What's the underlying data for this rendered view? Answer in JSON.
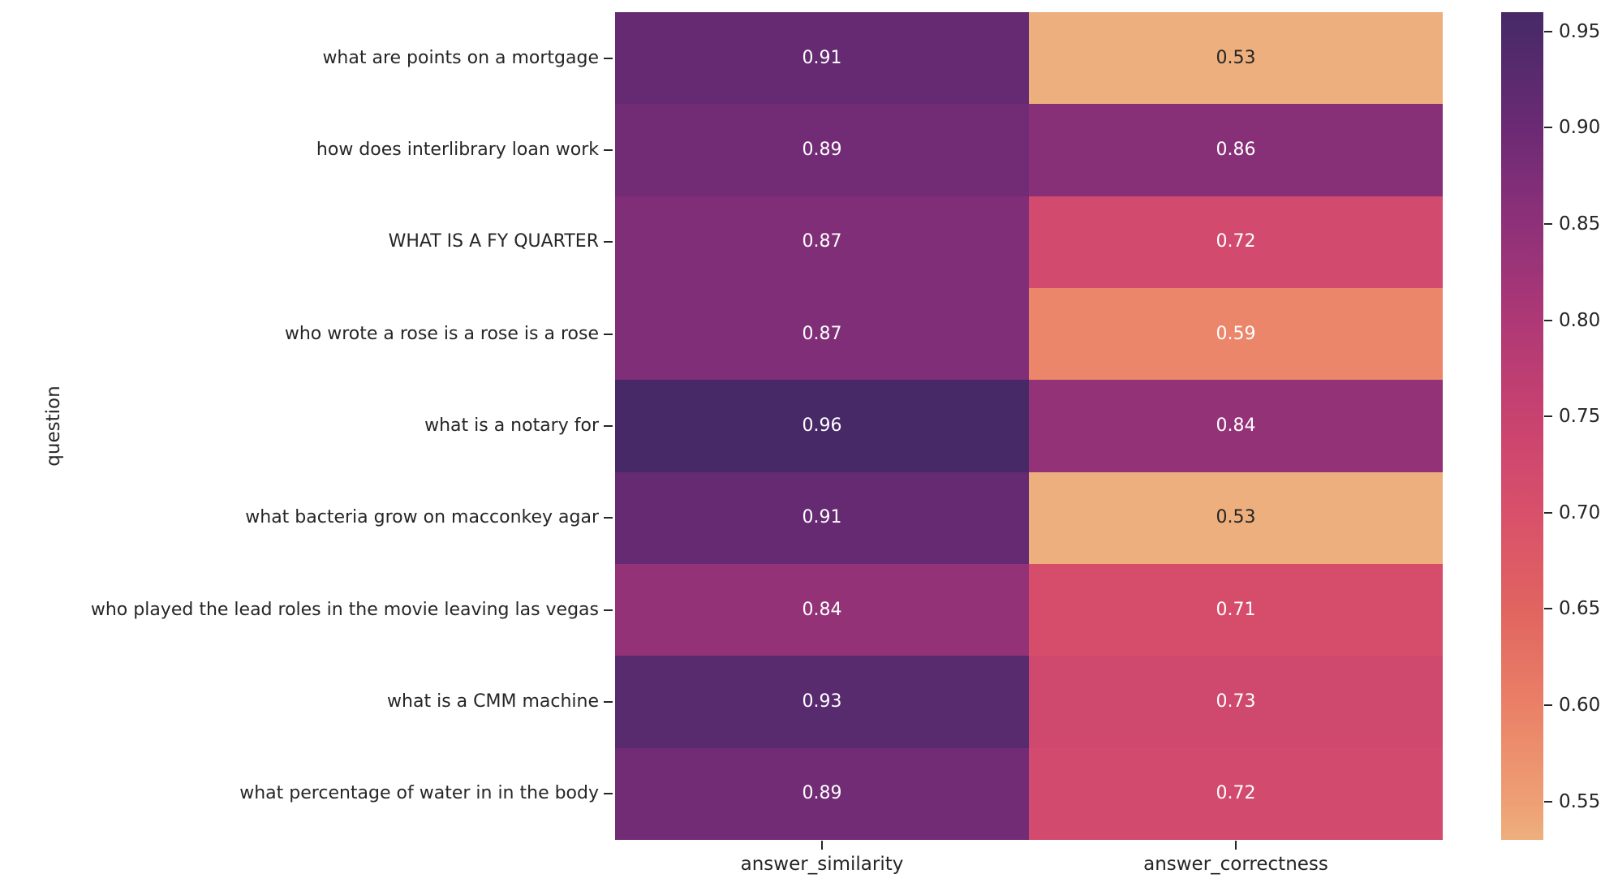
{
  "chart_data": {
    "type": "heatmap",
    "title": "",
    "xlabel": "",
    "ylabel": "question",
    "columns": [
      "answer_similarity",
      "answer_correctness"
    ],
    "rows": [
      "what are points on a mortgage",
      "how does interlibrary loan work",
      "WHAT IS A FY QUARTER",
      "who wrote a rose is a rose is a rose",
      "what is a notary for",
      "what bacteria grow on macconkey agar",
      "who played the lead roles in the movie leaving las vegas",
      "what is a CMM machine",
      "what percentage of water in in the body"
    ],
    "values": [
      [
        0.91,
        0.53
      ],
      [
        0.89,
        0.86
      ],
      [
        0.87,
        0.72
      ],
      [
        0.87,
        0.59
      ],
      [
        0.96,
        0.84
      ],
      [
        0.91,
        0.53
      ],
      [
        0.84,
        0.71
      ],
      [
        0.93,
        0.73
      ],
      [
        0.89,
        0.72
      ]
    ],
    "vmin": 0.53,
    "vmax": 0.96,
    "colorbar_ticks": [
      0.95,
      0.9,
      0.85,
      0.8,
      0.75,
      0.7,
      0.65,
      0.6,
      0.55
    ],
    "colormap": {
      "name": "flare",
      "stops": [
        {
          "value": 0.53,
          "color": "#EDAF7D"
        },
        {
          "value": 0.55,
          "color": "#EE9F74"
        },
        {
          "value": 0.6,
          "color": "#EA8067"
        },
        {
          "value": 0.65,
          "color": "#E06460"
        },
        {
          "value": 0.7,
          "color": "#D9506B"
        },
        {
          "value": 0.75,
          "color": "#C84270"
        },
        {
          "value": 0.8,
          "color": "#AE3876"
        },
        {
          "value": 0.85,
          "color": "#8E3179"
        },
        {
          "value": 0.9,
          "color": "#6B2A74"
        },
        {
          "value": 0.95,
          "color": "#4B2A6A"
        },
        {
          "value": 0.96,
          "color": "#482968"
        }
      ]
    },
    "annotation_text_colors": {
      "on_light": "#262626",
      "on_dark": "#ffffff"
    },
    "legend_position": "right-colorbar",
    "grid": false
  }
}
